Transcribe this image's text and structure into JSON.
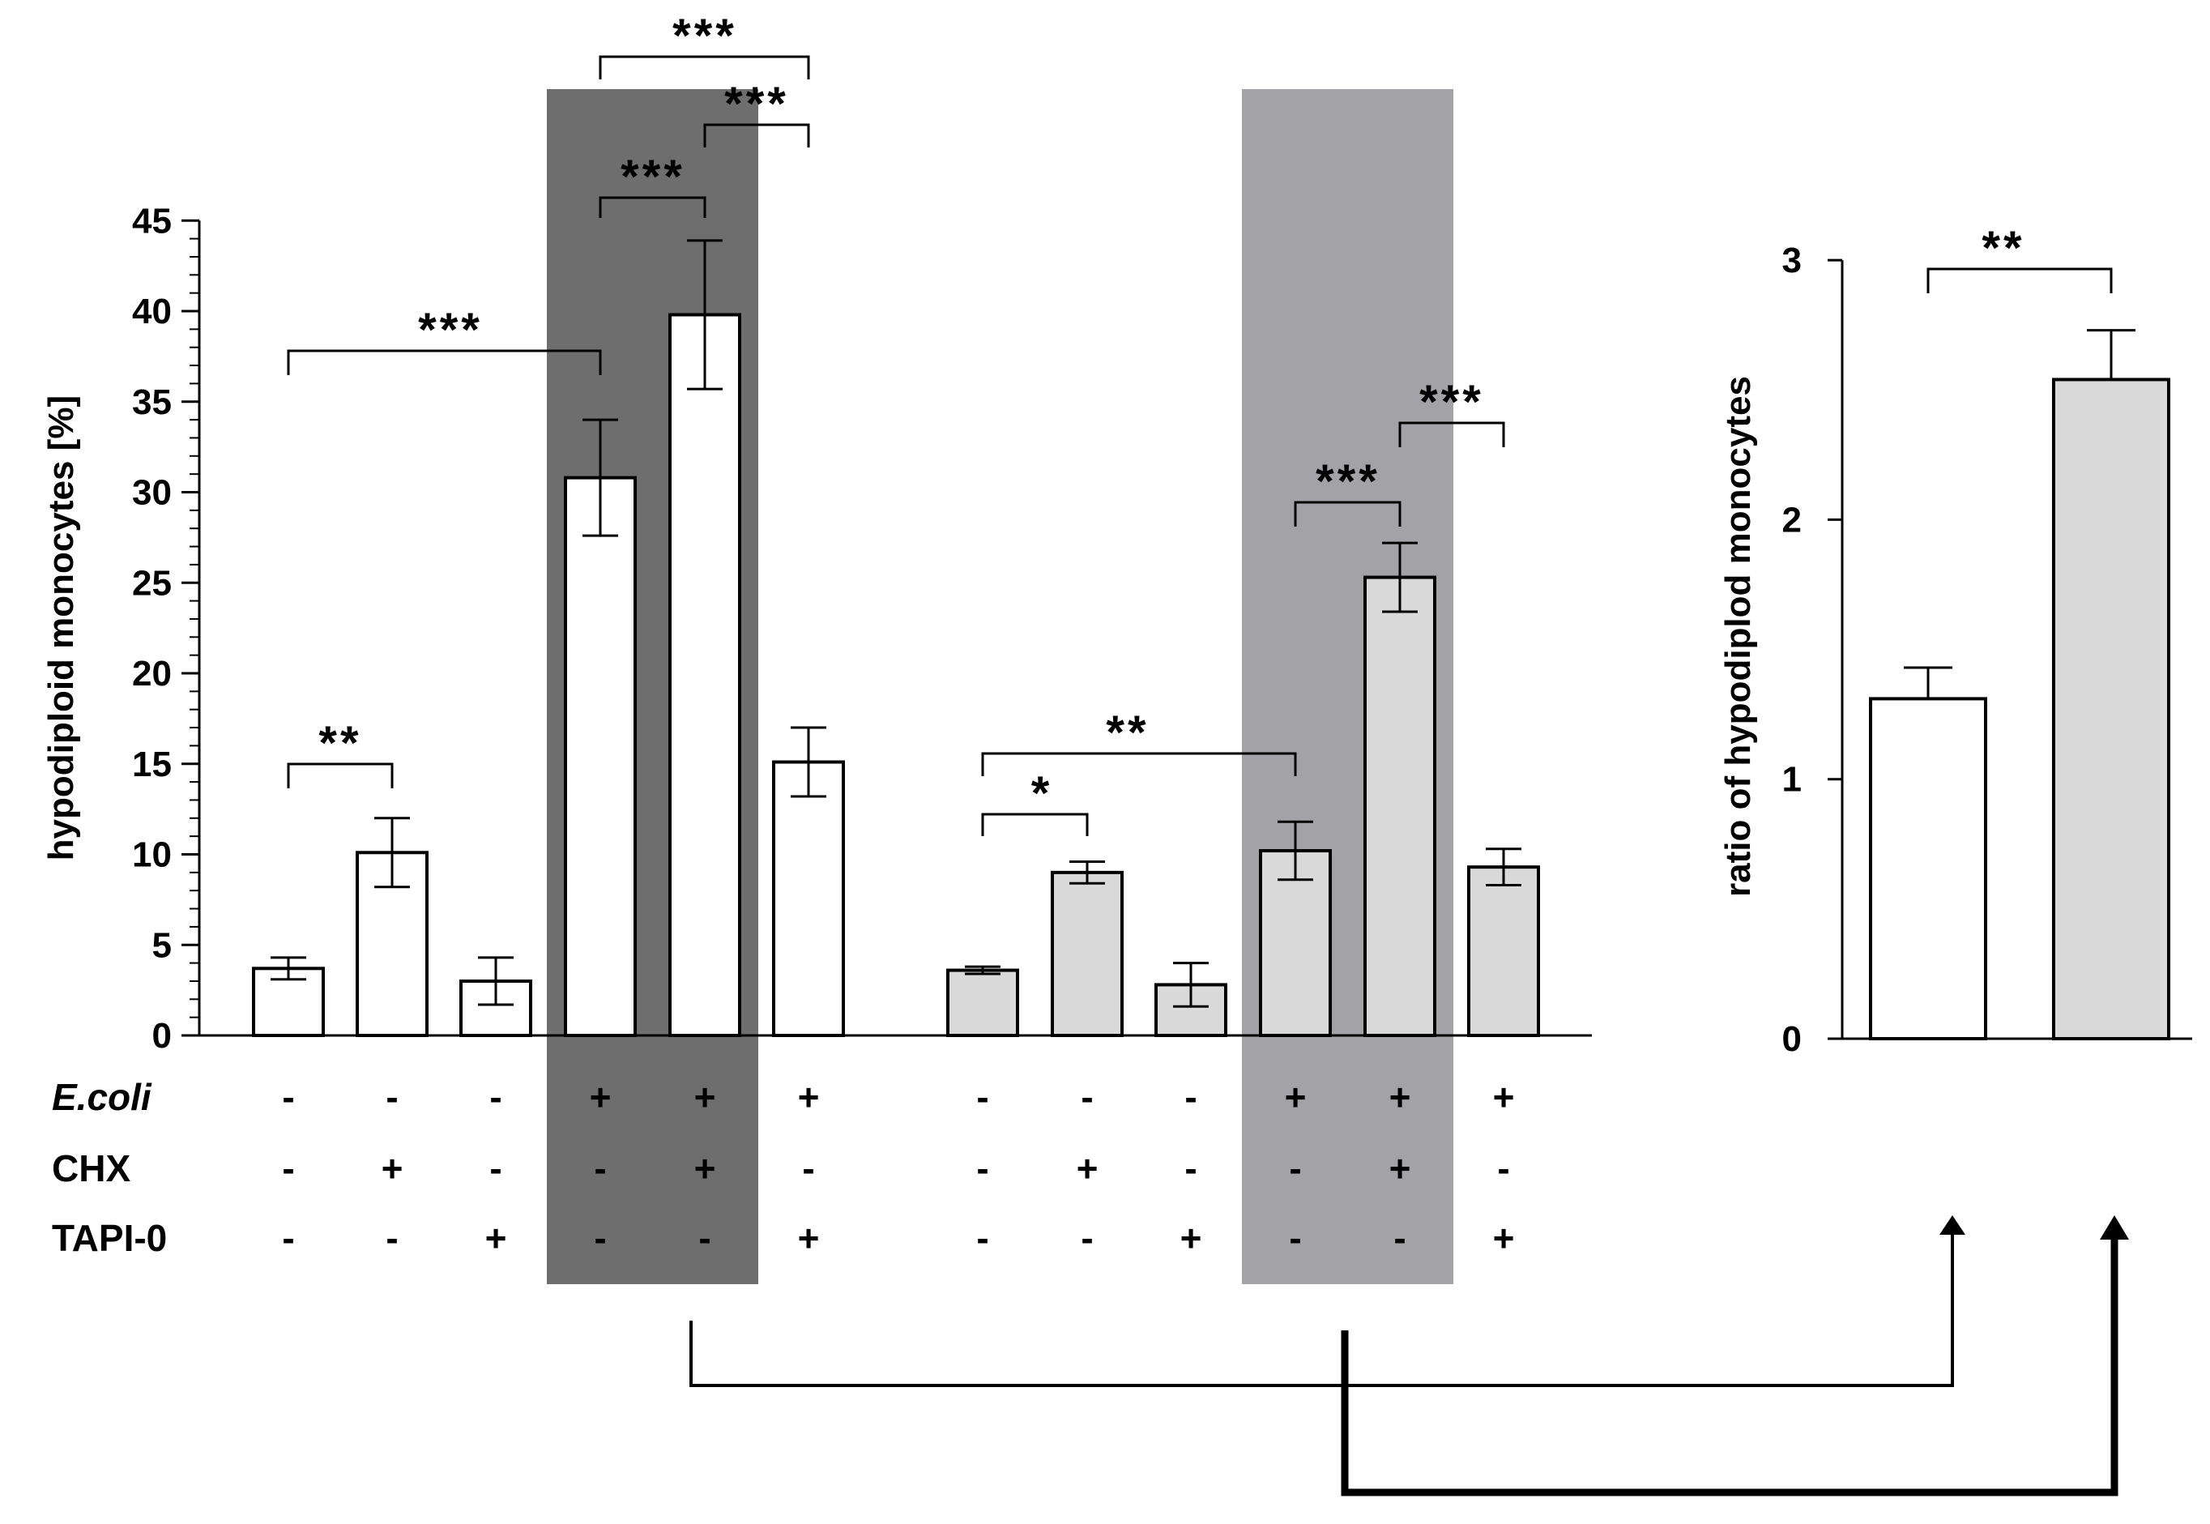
{
  "chart_data": [
    {
      "type": "bar",
      "ylabel": "hypodiploid monocytes [%]",
      "ylim": [
        0,
        45
      ],
      "yticks": [
        0,
        5,
        10,
        15,
        20,
        25,
        30,
        35,
        40,
        45
      ],
      "bar_colors": {
        "group1": "#ffffff",
        "group2": "#d9d9d9"
      },
      "highlight_colors": [
        "#6e6e6e",
        "#a3a3a7"
      ],
      "conditions": {
        "labels": [
          "E.coli",
          "CHX",
          "TAPI-0"
        ],
        "rows": [
          [
            "-",
            "-",
            "-",
            "+",
            "+",
            "+",
            "-",
            "-",
            "-",
            "+",
            "+",
            "+"
          ],
          [
            "-",
            "+",
            "-",
            "-",
            "+",
            "-",
            "-",
            "+",
            "-",
            "-",
            "+",
            "-"
          ],
          [
            "-",
            "-",
            "+",
            "-",
            "-",
            "+",
            "-",
            "-",
            "+",
            "-",
            "-",
            "+"
          ]
        ]
      },
      "values": [
        3.7,
        10.1,
        3.0,
        30.8,
        39.8,
        15.1,
        3.6,
        9.0,
        2.8,
        10.2,
        25.3,
        9.3
      ],
      "errors": [
        0.6,
        1.9,
        1.3,
        3.2,
        4.1,
        1.9,
        0.2,
        0.6,
        1.2,
        1.6,
        1.9,
        1.0
      ],
      "significance": [
        {
          "from": 0,
          "to": 1,
          "label": "**"
        },
        {
          "from": 0,
          "to": 3,
          "label": "***"
        },
        {
          "from": 3,
          "to": 4,
          "label": "***"
        },
        {
          "from": 4,
          "to": 5,
          "label": "***"
        },
        {
          "from": 3,
          "to": 5,
          "label": "***"
        },
        {
          "from": 6,
          "to": 7,
          "label": "*"
        },
        {
          "from": 6,
          "to": 9,
          "label": "**"
        },
        {
          "from": 9,
          "to": 10,
          "label": "***"
        },
        {
          "from": 10,
          "to": 11,
          "label": "***"
        }
      ]
    },
    {
      "type": "bar",
      "ylabel": "ratio of hypodiplod monocytes",
      "ylim": [
        0,
        3
      ],
      "yticks": [
        0,
        1,
        2,
        3
      ],
      "values": [
        1.31,
        2.54
      ],
      "errors": [
        0.12,
        0.19
      ],
      "bar_colors": [
        "#ffffff",
        "#d9d9d9"
      ],
      "significance": [
        {
          "from": 0,
          "to": 1,
          "label": "**"
        }
      ]
    }
  ]
}
